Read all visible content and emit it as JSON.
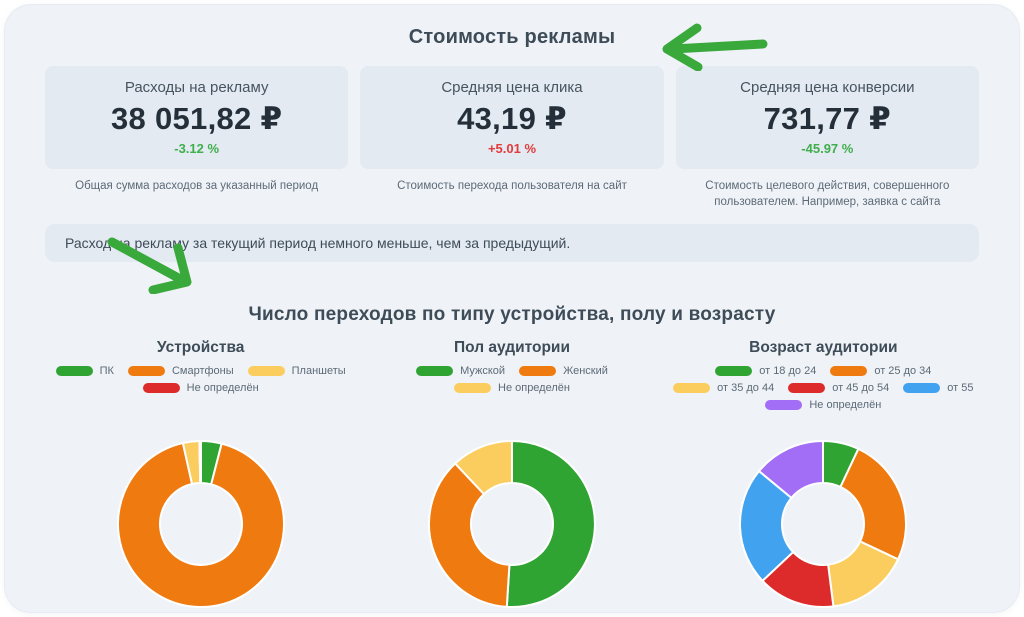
{
  "page": {
    "title": "Стоимость рекламы",
    "note": "Расход на рекламу за текущий период немного меньше, чем за предыдущий.",
    "section2_title": "Число переходов по типу устройства, полу и возрасту"
  },
  "annotations": {
    "arrow_title": "green hand-drawn arrow pointing left at the page title",
    "arrow_section": "green hand-drawn arrow pointing down-right at the section title",
    "arrow_color": "#3aa93c"
  },
  "kpi_cards": [
    {
      "title": "Расходы на рекламу",
      "value": "38 051,82 ₽",
      "delta": "-3.12 %",
      "delta_color": "#3fae4c",
      "caption": "Общая сумма расходов за указанный период"
    },
    {
      "title": "Средняя цена клика",
      "value": "43,19 ₽",
      "delta": "+5.01 %",
      "delta_color": "#e23b3b",
      "caption": "Стоимость перехода пользователя на сайт"
    },
    {
      "title": "Средняя цена конверсии",
      "value": "731,77 ₽",
      "delta": "-45.97 %",
      "delta_color": "#3fae4c",
      "caption": "Стоимость целевого действия, совершенного пользователем. Например, заявка с сайта"
    }
  ],
  "chart_data": [
    {
      "type": "pie",
      "donut": true,
      "title": "Устройства",
      "labels": [
        "ПК",
        "Смартфоны",
        "Планшеты",
        "Не определён"
      ],
      "values": [
        4,
        92.5,
        3.2,
        0.3
      ],
      "values_unit": "percent share (estimated from arc angles, no numeric labels shown)",
      "colors": [
        "#30a433",
        "#ef7b10",
        "#fbcd5e",
        "#dd2b2b"
      ],
      "legend_position": "top"
    },
    {
      "type": "pie",
      "donut": true,
      "title": "Пол аудитории",
      "labels": [
        "Мужской",
        "Женский",
        "Не определён"
      ],
      "values": [
        51,
        37,
        12
      ],
      "values_unit": "percent share (estimated from arc angles, no numeric labels shown)",
      "colors": [
        "#30a433",
        "#ef7b10",
        "#fbcd5e"
      ],
      "legend_position": "top"
    },
    {
      "type": "pie",
      "donut": true,
      "title": "Возраст аудитории",
      "labels": [
        "от 18 до 24",
        "от 25 до 34",
        "от 35 до 44",
        "от 45 до 54",
        "от 55",
        "Не определён"
      ],
      "values": [
        7,
        25,
        16,
        15,
        23,
        14
      ],
      "values_unit": "percent share (estimated from arc angles, no numeric labels shown)",
      "colors": [
        "#30a433",
        "#ef7b10",
        "#fbcd5e",
        "#dd2b2b",
        "#41a3f0",
        "#a16ef5"
      ],
      "legend_position": "top"
    }
  ]
}
